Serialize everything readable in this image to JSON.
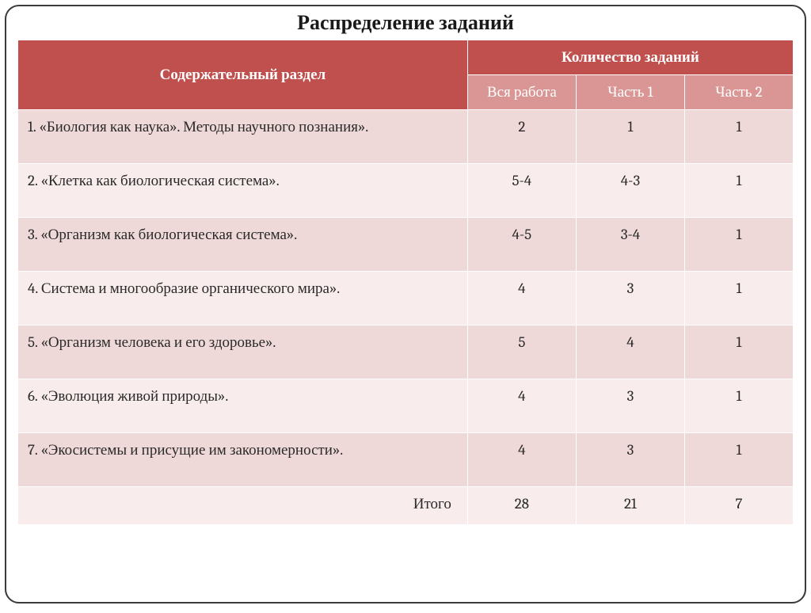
{
  "title": "Распределение заданий",
  "table": {
    "type": "table",
    "header_bg_main": "#c0504d",
    "header_bg_sub": "#d99694",
    "header_text_color": "#ffffff",
    "row_colors": [
      "#efd9d8",
      "#f8edec"
    ],
    "border_color": "#ffffff",
    "text_color": "#2a2a2a",
    "font_family": "Cambria",
    "cell_fontsize": 19,
    "header_fontsize": 20,
    "column_widths_pct": [
      58,
      14,
      14,
      14
    ],
    "columns": {
      "section_label": "Содержательный раздел",
      "count_group_label": "Количество заданий",
      "sub": [
        "Вся работа",
        "Часть 1",
        "Часть 2"
      ]
    },
    "rows": [
      {
        "section": "1. «Биология как наука». Методы научного познания».",
        "all": "2",
        "p1": "1",
        "p2": "1"
      },
      {
        "section": "2. «Клетка как биологическая система».",
        "all": "5-4",
        "p1": "4-3",
        "p2": "1"
      },
      {
        "section": "3. «Организм как биологическая система».",
        "all": "4-5",
        "p1": "3-4",
        "p2": "1"
      },
      {
        "section": "4. Система и многообразие органического мира».",
        "all": "4",
        "p1": "3",
        "p2": "1"
      },
      {
        "section": "5. «Организм человека и его здоровье».",
        "all": "5",
        "p1": "4",
        "p2": "1"
      },
      {
        "section": "6. «Эволюция живой природы».",
        "all": "4",
        "p1": "3",
        "p2": "1"
      },
      {
        "section": "7. «Экосистемы и присущие им закономерности».",
        "all": "4",
        "p1": "3",
        "p2": "1"
      }
    ],
    "total": {
      "label": "Итого",
      "all": "28",
      "p1": "21",
      "p2": "7"
    }
  }
}
